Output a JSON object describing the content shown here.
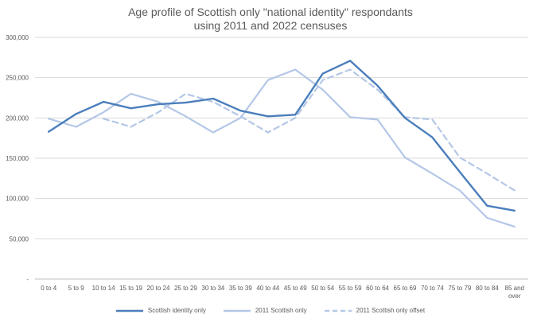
{
  "chart_data": {
    "type": "line",
    "title": "Age profile of Scottish only \"national identity\" respondants",
    "subtitle": "using 2011 and 2022 censuses",
    "categories": [
      "0 to  4",
      "5 to 9",
      "10 to 14",
      "15 to 19",
      "20 to 24",
      "25 to 29",
      "30 to 34",
      "35 to 39",
      "40 to 44",
      "45 to 49",
      "50 to 54",
      "55 to 59",
      "60 to 64",
      "65 to 69",
      "70 to 74",
      "75 to 79",
      "80 to 84",
      "85 and over"
    ],
    "y_ticks": [
      "-",
      "50,000",
      "100,000",
      "150,000",
      "200,000",
      "250,000",
      "300,000"
    ],
    "ylim": [
      0,
      300000
    ],
    "grid": true,
    "legend_position": "bottom",
    "series": [
      {
        "name": "Scottish identity only",
        "color": "#4a7ebb",
        "dash": "solid",
        "values": [
          183000,
          205000,
          220000,
          212000,
          217000,
          219000,
          224000,
          209000,
          202000,
          204000,
          255000,
          271000,
          240000,
          200000,
          176000,
          133000,
          91000,
          85000
        ]
      },
      {
        "name": "2011 Scottish only",
        "color": "#b4c7e7",
        "dash": "solid",
        "values": [
          199000,
          189000,
          207000,
          230000,
          220000,
          202000,
          182000,
          200000,
          247000,
          260000,
          235000,
          201000,
          198000,
          151000,
          131000,
          110000,
          76000,
          65000
        ]
      },
      {
        "name": "2011 Scottish only offset",
        "color": "#b4c7e7",
        "dash": "dashed",
        "values": [
          null,
          null,
          199000,
          189000,
          207000,
          230000,
          220000,
          202000,
          182000,
          200000,
          247000,
          260000,
          235000,
          201000,
          198000,
          151000,
          131000,
          110000
        ]
      }
    ]
  }
}
